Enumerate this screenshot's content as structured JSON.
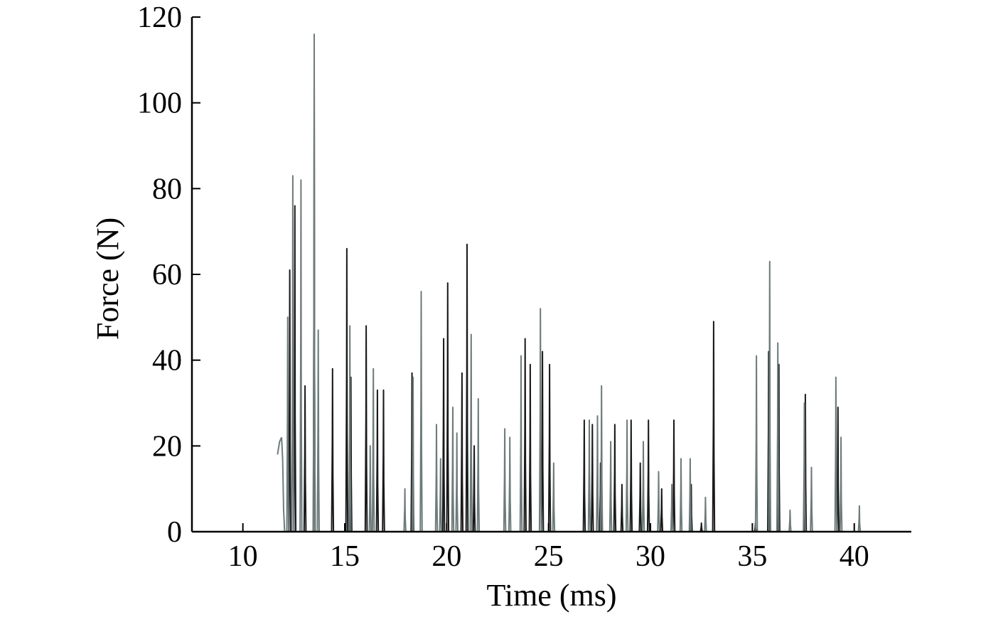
{
  "chart_data": {
    "type": "line",
    "title": "",
    "xlabel": "Time (ms)",
    "ylabel": "Force (N)",
    "xlim": [
      7.5,
      42.8
    ],
    "ylim": [
      0,
      120
    ],
    "xticks": [
      10,
      15,
      20,
      25,
      30,
      35,
      40
    ],
    "yticks": [
      0,
      20,
      40,
      60,
      80,
      100,
      120
    ],
    "grid": false,
    "legend": "none",
    "colors": {
      "dark": "#1a1a1a",
      "gray": "#6e7b7b",
      "axis": "#000000"
    },
    "series": [
      {
        "color": "dark",
        "peaks": [
          [
            12.3,
            61
          ],
          [
            12.55,
            76
          ],
          [
            13.05,
            34
          ],
          [
            13.5,
            105
          ],
          [
            14.4,
            38
          ],
          [
            15.1,
            66
          ],
          [
            15.3,
            36
          ],
          [
            16.05,
            48
          ],
          [
            16.6,
            33
          ],
          [
            16.9,
            33
          ],
          [
            18.3,
            37
          ],
          [
            19.85,
            45
          ],
          [
            20.05,
            58
          ],
          [
            20.75,
            37
          ],
          [
            21.0,
            67
          ],
          [
            21.35,
            20
          ],
          [
            23.85,
            45
          ],
          [
            24.1,
            39
          ],
          [
            24.7,
            42
          ],
          [
            25.05,
            39
          ],
          [
            26.75,
            26
          ],
          [
            27.15,
            25
          ],
          [
            27.55,
            16
          ],
          [
            28.25,
            25
          ],
          [
            28.6,
            11
          ],
          [
            29.05,
            26
          ],
          [
            29.5,
            16
          ],
          [
            29.9,
            26
          ],
          [
            30.55,
            10
          ],
          [
            31.15,
            26
          ],
          [
            32.0,
            11
          ],
          [
            32.5,
            2
          ],
          [
            33.1,
            49
          ],
          [
            35.15,
            2
          ],
          [
            35.8,
            42
          ],
          [
            36.3,
            39
          ],
          [
            37.6,
            32
          ],
          [
            39.2,
            29
          ]
        ]
      },
      {
        "color": "gray",
        "peaks": [
          [
            12.2,
            50
          ],
          [
            12.45,
            83
          ],
          [
            12.85,
            82
          ],
          [
            13.5,
            116
          ],
          [
            13.7,
            47
          ],
          [
            15.25,
            48
          ],
          [
            16.25,
            20
          ],
          [
            16.4,
            38
          ],
          [
            17.95,
            10
          ],
          [
            18.35,
            36
          ],
          [
            18.75,
            56
          ],
          [
            19.5,
            25
          ],
          [
            19.7,
            17
          ],
          [
            20.3,
            29
          ],
          [
            20.5,
            23
          ],
          [
            21.2,
            46
          ],
          [
            21.55,
            31
          ],
          [
            22.85,
            24
          ],
          [
            23.1,
            22
          ],
          [
            23.65,
            41
          ],
          [
            24.6,
            52
          ],
          [
            25.25,
            16
          ],
          [
            27.0,
            26
          ],
          [
            27.4,
            27
          ],
          [
            27.6,
            34
          ],
          [
            28.05,
            21
          ],
          [
            28.85,
            26
          ],
          [
            29.65,
            21
          ],
          [
            30.4,
            14
          ],
          [
            31.05,
            11
          ],
          [
            31.5,
            17
          ],
          [
            31.95,
            17
          ],
          [
            32.7,
            8
          ],
          [
            35.2,
            41
          ],
          [
            35.85,
            63
          ],
          [
            36.25,
            44
          ],
          [
            36.85,
            5
          ],
          [
            37.55,
            30
          ],
          [
            37.9,
            15
          ],
          [
            39.1,
            36
          ],
          [
            39.35,
            22
          ],
          [
            40.25,
            6
          ]
        ]
      }
    ],
    "extra_segments": [
      {
        "color": "gray",
        "points": [
          [
            11.7,
            18
          ],
          [
            11.8,
            21
          ],
          [
            11.9,
            22
          ],
          [
            11.95,
            17
          ],
          [
            12.0,
            5
          ],
          [
            12.05,
            0
          ]
        ]
      }
    ]
  }
}
